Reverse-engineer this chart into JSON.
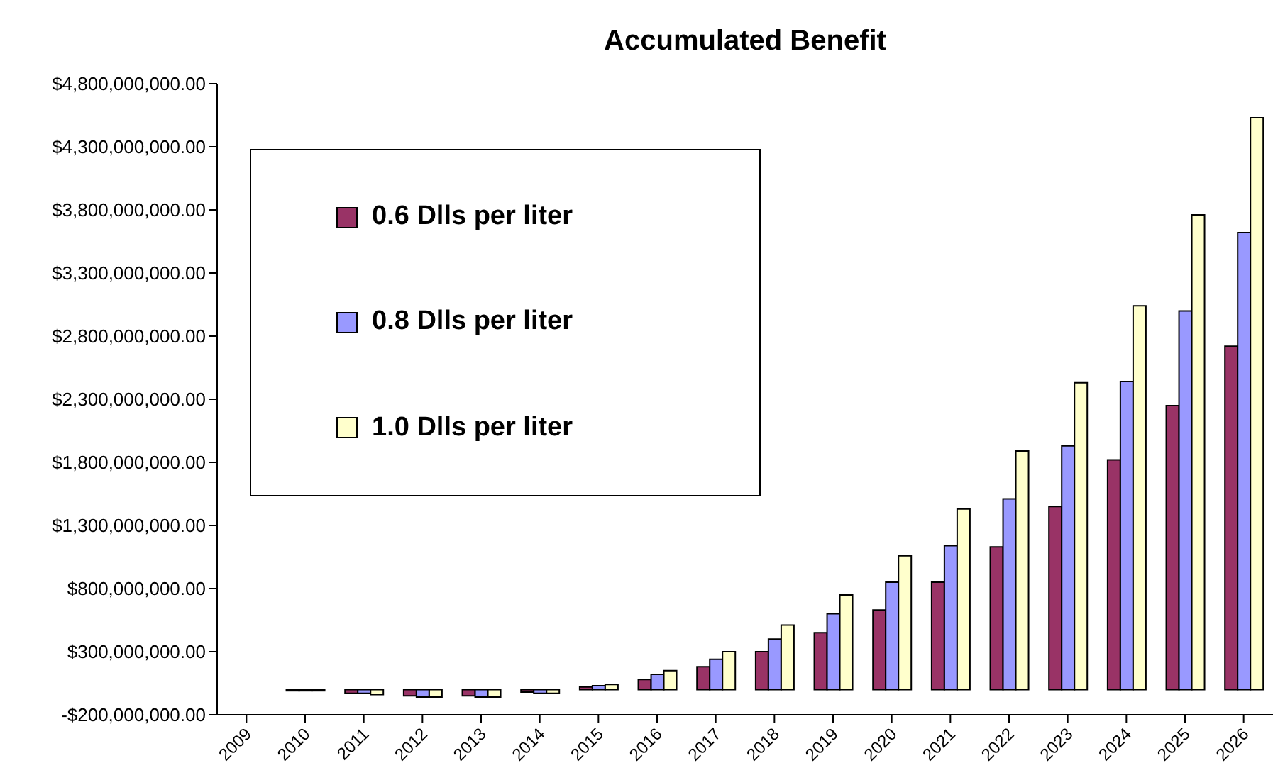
{
  "chart_data": {
    "type": "bar",
    "title": "Accumulated Benefit",
    "categories": [
      "2009",
      "2010",
      "2011",
      "2012",
      "2013",
      "2014",
      "2015",
      "2016",
      "2017",
      "2018",
      "2019",
      "2020",
      "2021",
      "2022",
      "2023",
      "2024",
      "2025",
      "2026"
    ],
    "series": [
      {
        "name": "0.6 Dlls per liter",
        "color": "#993366",
        "values": [
          0,
          -10000000,
          -30000000,
          -50000000,
          -50000000,
          -20000000,
          20000000,
          80000000,
          180000000,
          300000000,
          450000000,
          630000000,
          850000000,
          1130000000,
          1450000000,
          1820000000,
          2250000000,
          2720000000
        ]
      },
      {
        "name": "0.8 Dlls per liter",
        "color": "#9999ff",
        "values": [
          0,
          -10000000,
          -30000000,
          -60000000,
          -60000000,
          -30000000,
          30000000,
          120000000,
          240000000,
          400000000,
          600000000,
          850000000,
          1140000000,
          1510000000,
          1930000000,
          2440000000,
          3000000000,
          3620000000
        ]
      },
      {
        "name": "1.0 Dlls per liter",
        "color": "#ffffcc",
        "values": [
          0,
          -10000000,
          -40000000,
          -60000000,
          -60000000,
          -30000000,
          40000000,
          150000000,
          300000000,
          510000000,
          750000000,
          1060000000,
          1430000000,
          1890000000,
          2430000000,
          3040000000,
          3760000000,
          4530000000
        ]
      }
    ],
    "ylim": [
      -200000000,
      4800000000
    ],
    "yticks": [
      {
        "value": -200000000,
        "label": "-$200,000,000.00"
      },
      {
        "value": 300000000,
        "label": "$300,000,000.00"
      },
      {
        "value": 800000000,
        "label": "$800,000,000.00"
      },
      {
        "value": 1300000000,
        "label": "$1,300,000,000.00"
      },
      {
        "value": 1800000000,
        "label": "$1,800,000,000.00"
      },
      {
        "value": 2300000000,
        "label": "$2,300,000,000.00"
      },
      {
        "value": 2800000000,
        "label": "$2,800,000,000.00"
      },
      {
        "value": 3300000000,
        "label": "$3,300,000,000.00"
      },
      {
        "value": 3800000000,
        "label": "$3,800,000,000.00"
      },
      {
        "value": 4300000000,
        "label": "$4,300,000,000.00"
      },
      {
        "value": 4800000000,
        "label": "$4,800,000,000.00"
      }
    ],
    "grid": false,
    "legend": "top left"
  }
}
